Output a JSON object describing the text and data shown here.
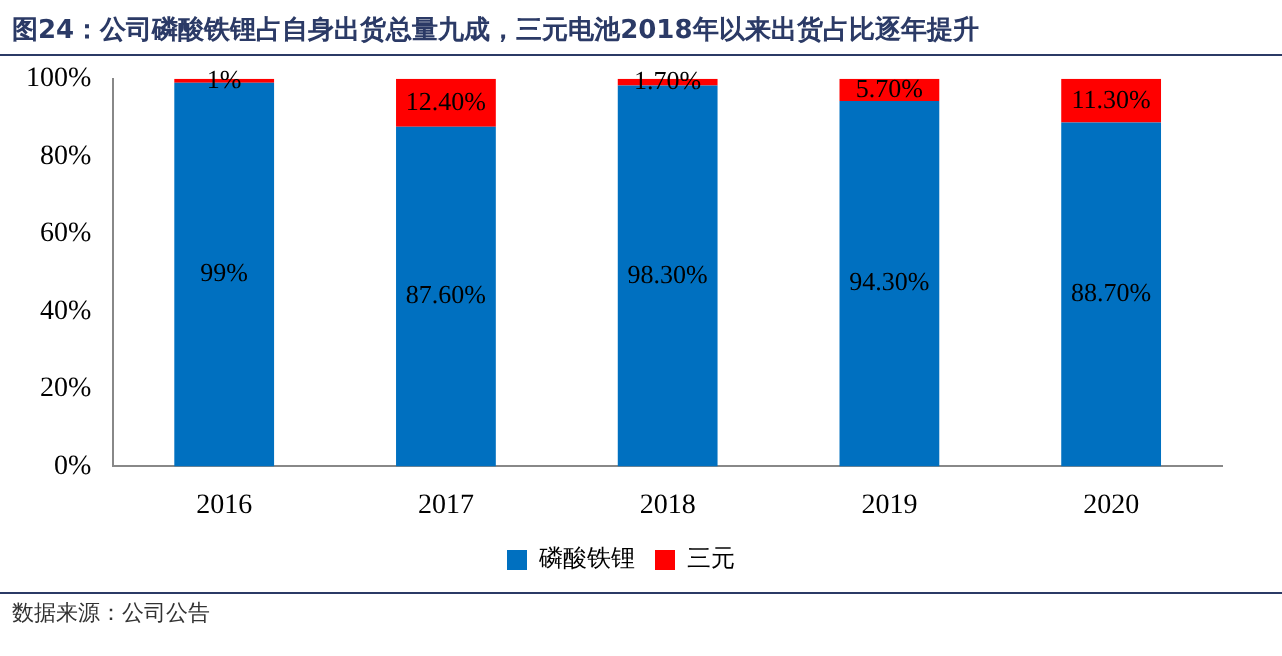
{
  "chart_data": {
    "type": "bar",
    "title": "图24：公司磷酸铁锂占自身出货总量九成，三元电池2018年以来出货占比逐年提升",
    "categories": [
      "2016",
      "2017",
      "2018",
      "2019",
      "2020"
    ],
    "stacked": true,
    "series": [
      {
        "name": "磷酸铁锂",
        "color": "#0070c0",
        "values": [
          99,
          87.6,
          98.3,
          94.3,
          88.7
        ],
        "value_labels": [
          "99%",
          "87.60%",
          "98.30%",
          "94.30%",
          "88.70%"
        ]
      },
      {
        "name": "三元",
        "color": "#ff0000",
        "values": [
          1,
          12.4,
          1.7,
          5.7,
          11.3
        ],
        "value_labels": [
          "1%",
          "12.40%",
          "1.70%",
          "5.70%",
          "11.30%"
        ]
      }
    ],
    "ylim": [
      0,
      100
    ],
    "yticks": [
      {
        "value": 0,
        "label": "0%"
      },
      {
        "value": 20,
        "label": "20%"
      },
      {
        "value": 40,
        "label": "40%"
      },
      {
        "value": 60,
        "label": "60%"
      },
      {
        "value": 80,
        "label": "80%"
      },
      {
        "value": 100,
        "label": "100%"
      }
    ],
    "grid": false,
    "legend": "bottom",
    "annotations": [
      "数据来源：公司公告"
    ]
  }
}
